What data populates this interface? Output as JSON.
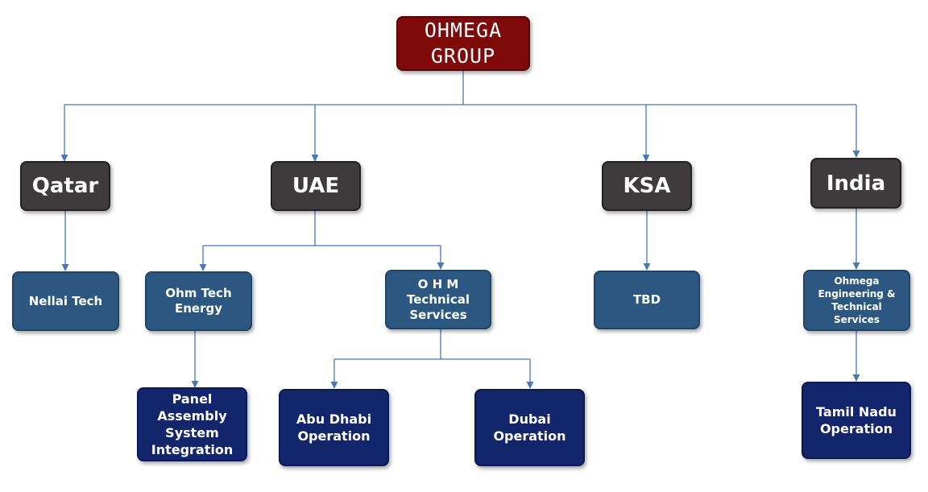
{
  "diagram": {
    "root": {
      "label": "OHMEGA\nGROUP"
    },
    "countries": [
      {
        "label": "Qatar"
      },
      {
        "label": "UAE"
      },
      {
        "label": "KSA"
      },
      {
        "label": "India"
      }
    ],
    "companies": [
      {
        "label": "Nellai Tech",
        "parent": "Qatar"
      },
      {
        "label": "Ohm Tech\nEnergy",
        "parent": "UAE"
      },
      {
        "label": "O H M\nTechnical\nServices",
        "parent": "UAE"
      },
      {
        "label": "TBD",
        "parent": "KSA"
      },
      {
        "label": "Ohmega\nEngineering &\nTechnical\nServices",
        "parent": "India"
      }
    ],
    "operations": [
      {
        "label": "Panel\nAssembly\nSystem\nIntegration",
        "parent": "Ohm Tech Energy"
      },
      {
        "label": "Abu Dhabi\nOperation",
        "parent": "O H M Technical Services"
      },
      {
        "label": "Dubai\nOperation",
        "parent": "O H M Technical Services"
      },
      {
        "label": "Tamil Nadu\nOperation",
        "parent": "Ohmega Engineering & Technical Services"
      }
    ],
    "colors": {
      "root": "#7f0a0a",
      "country": "#3d3b3b",
      "company": "#2b5781",
      "operation": "#13256b",
      "connector": "#4a78b0",
      "text": "#ffffff"
    }
  }
}
